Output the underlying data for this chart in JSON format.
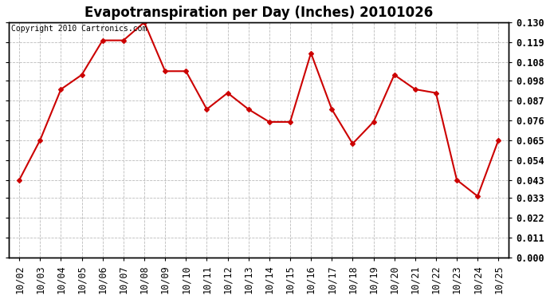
{
  "title": "Evapotranspiration per Day (Inches) 20101026",
  "copyright_text": "Copyright 2010 Cartronics.com",
  "dates": [
    "10/02",
    "10/03",
    "10/04",
    "10/05",
    "10/06",
    "10/07",
    "10/08",
    "10/09",
    "10/10",
    "10/11",
    "10/12",
    "10/13",
    "10/14",
    "10/15",
    "10/16",
    "10/17",
    "10/18",
    "10/19",
    "10/20",
    "10/21",
    "10/22",
    "10/23",
    "10/24",
    "10/25"
  ],
  "values": [
    0.043,
    0.065,
    0.093,
    0.101,
    0.12,
    0.12,
    0.13,
    0.103,
    0.103,
    0.082,
    0.091,
    0.082,
    0.075,
    0.075,
    0.113,
    0.082,
    0.063,
    0.075,
    0.101,
    0.093,
    0.091,
    0.043,
    0.034,
    0.065
  ],
  "line_color": "#cc0000",
  "marker": "D",
  "marker_size": 3,
  "bg_color": "#ffffff",
  "plot_bg_color": "#ffffff",
  "grid_color": "#bbbbbb",
  "ylim": [
    0.0,
    0.13
  ],
  "yticks": [
    0.0,
    0.011,
    0.022,
    0.033,
    0.043,
    0.054,
    0.065,
    0.076,
    0.087,
    0.098,
    0.108,
    0.119,
    0.13
  ],
  "title_fontsize": 12,
  "copyright_fontsize": 7,
  "tick_fontsize": 8.5,
  "figsize": [
    6.9,
    3.75
  ],
  "dpi": 100
}
